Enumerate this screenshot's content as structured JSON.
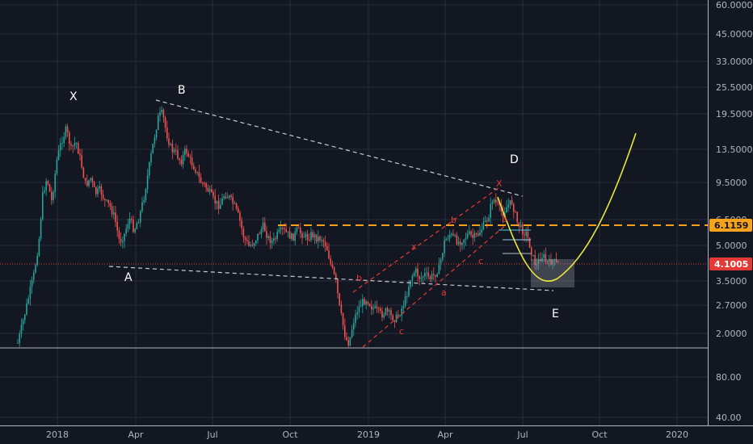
{
  "chart_data": {
    "type": "candlestick",
    "x_ticks": [
      "2018",
      "Apr",
      "Jul",
      "Oct",
      "2019",
      "Apr",
      "Jul",
      "Oct",
      "2020"
    ],
    "price_axis_scale": "log",
    "price_ticks": [
      "60.0000",
      "45.0000",
      "33.0000",
      "25.5000",
      "19.5000",
      "13.5000",
      "9.5000",
      "6.5000",
      "5.0000",
      "3.5000",
      "2.7000",
      "2.0000"
    ],
    "volume_ticks": [
      "80.00",
      "40.00"
    ],
    "price_badges": [
      {
        "value": "6.1159",
        "color": "#f7a21b"
      },
      {
        "value": "4.1005",
        "color": "#e53935"
      }
    ],
    "wave_labels": [
      "X",
      "B",
      "A",
      "D",
      "E"
    ],
    "sub_labels": [
      "b",
      "x",
      "a",
      "c",
      "b",
      "a",
      "c",
      "X"
    ],
    "colors": {
      "background": "#131722",
      "up": "#26a69a",
      "down": "#ef5350",
      "resistance": "#f7a21b",
      "current": "#e53935",
      "projection": "#e8e83a",
      "channel": "#e53935",
      "trend": "#c8cbd2"
    }
  }
}
